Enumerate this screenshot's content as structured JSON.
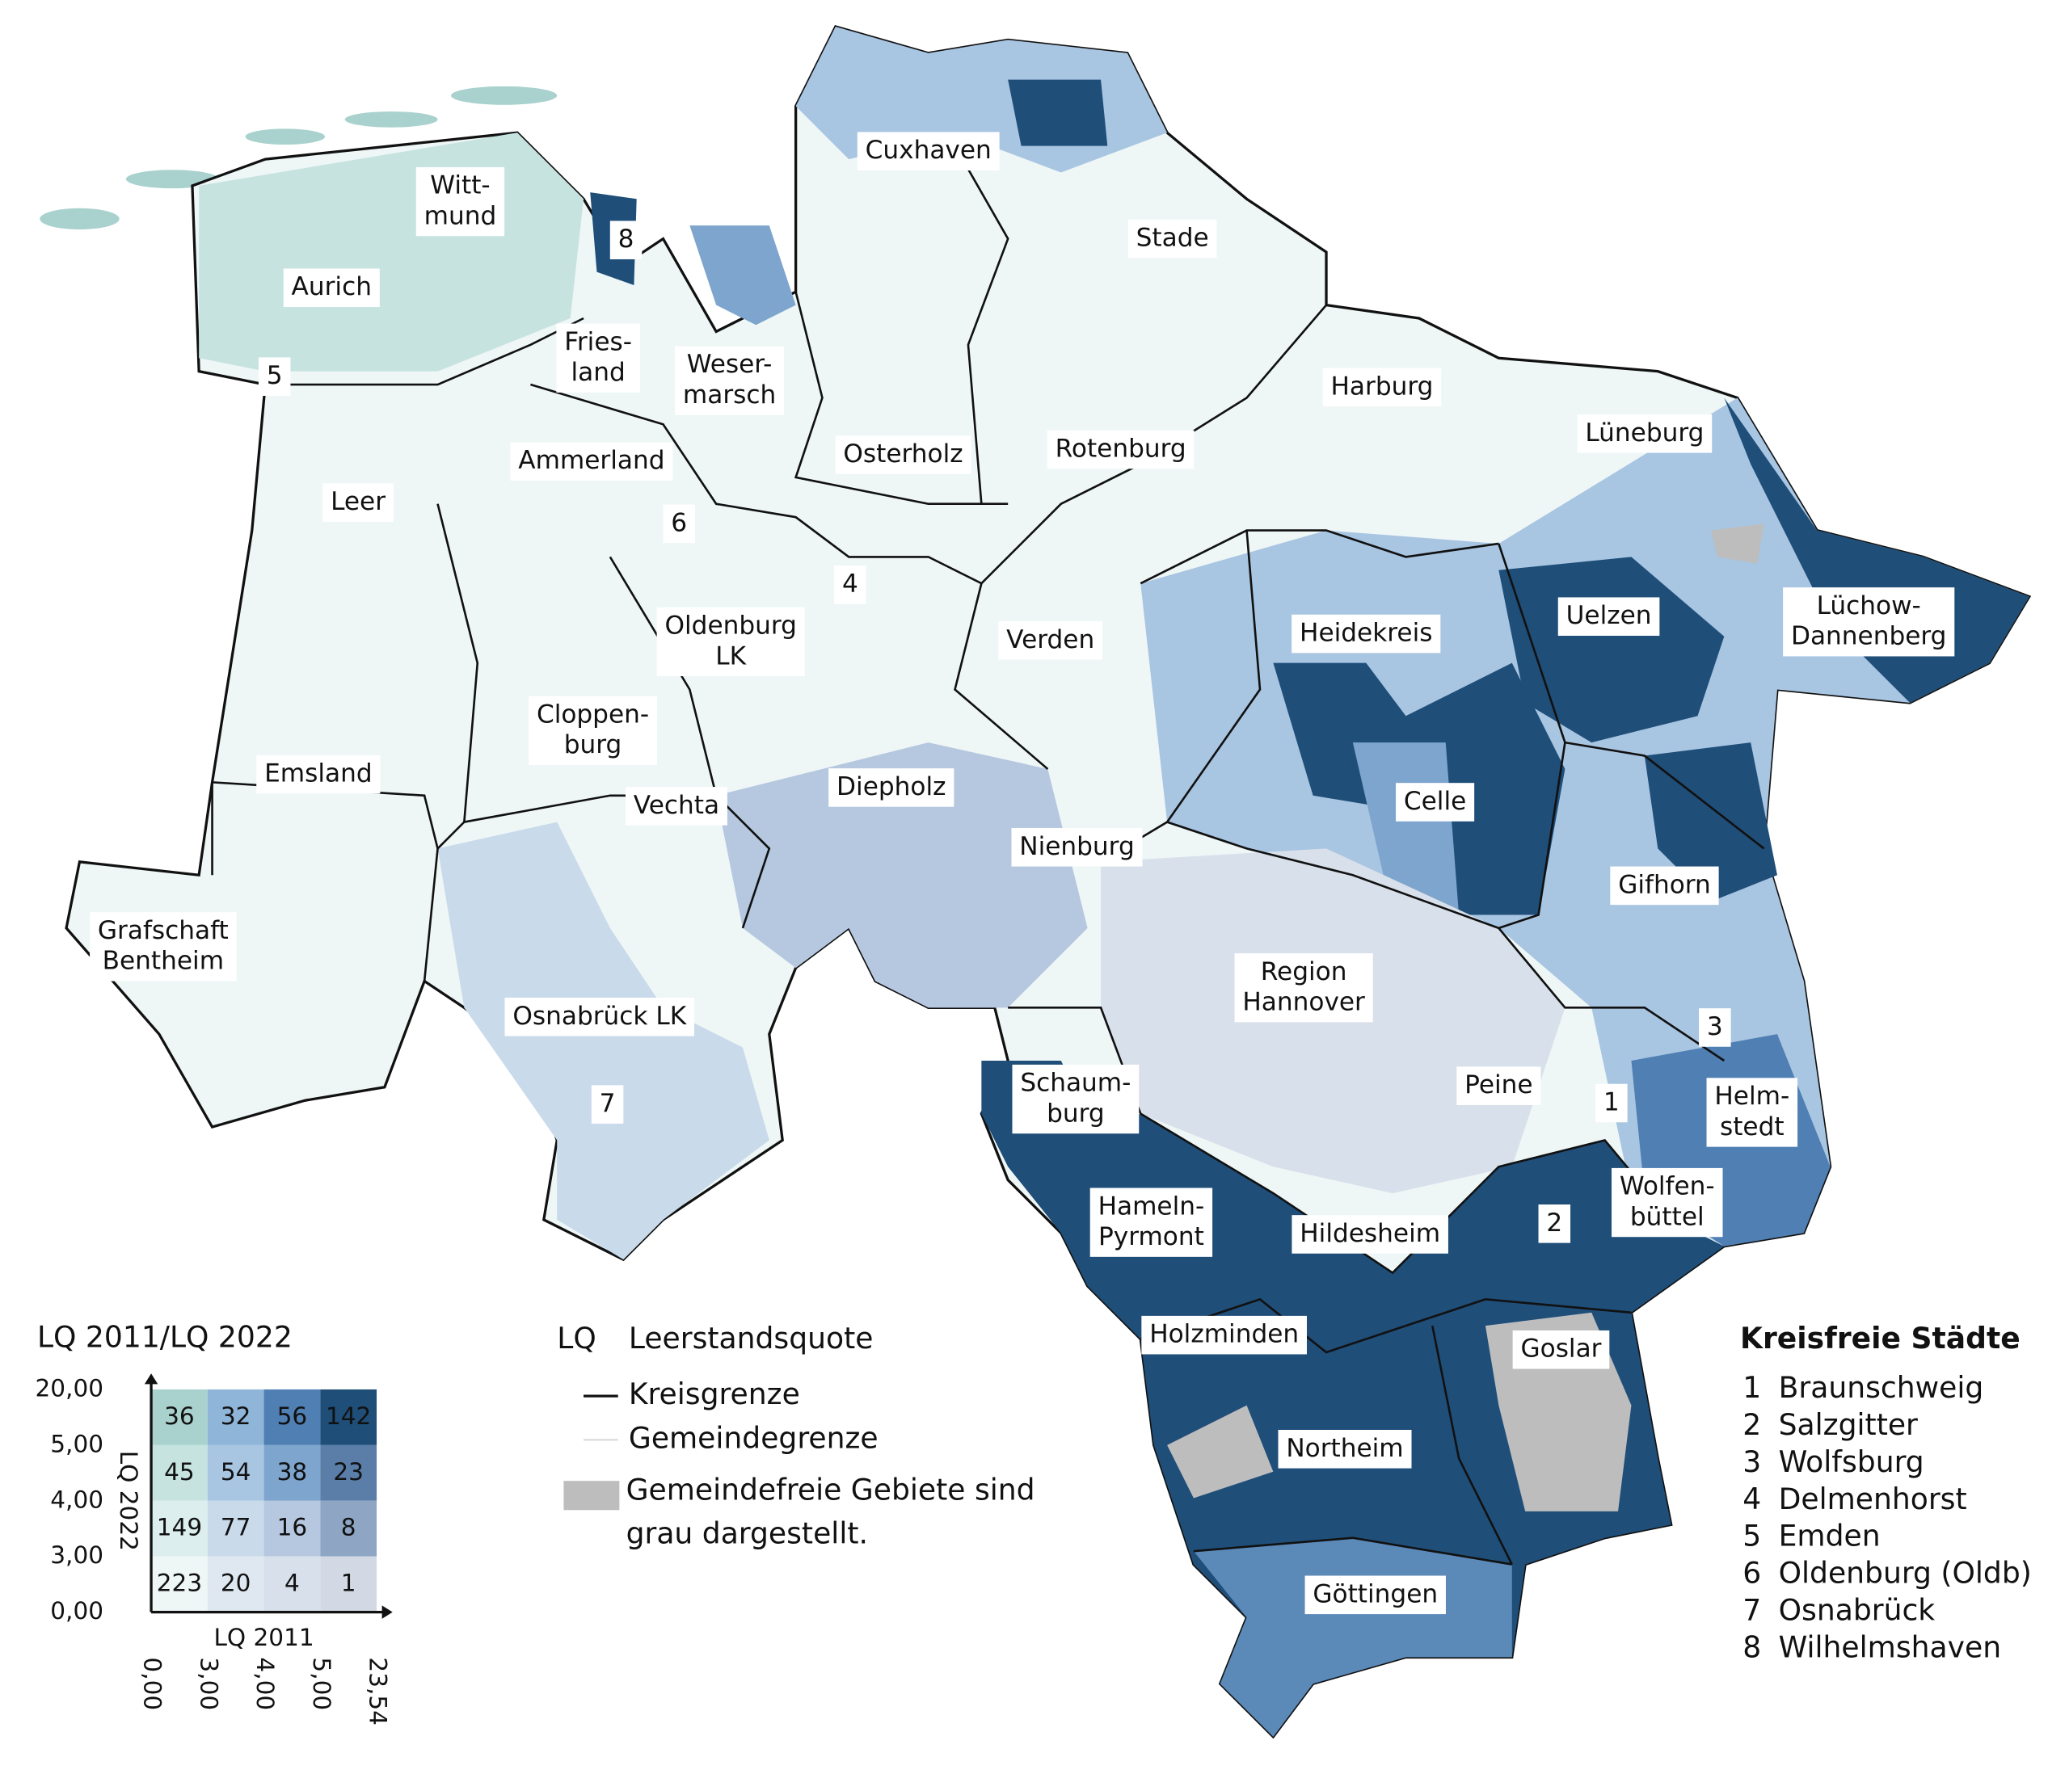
{
  "map": {
    "labels": [
      {
        "lines": [
          "Cuxhaven"
        ]
      },
      {
        "lines": [
          "Stade"
        ]
      },
      {
        "lines": [
          "Witt-",
          "mund"
        ]
      },
      {
        "lines": [
          "Aurich"
        ]
      },
      {
        "lines": [
          "8"
        ]
      },
      {
        "lines": [
          "Fries-",
          "land"
        ]
      },
      {
        "lines": [
          "Weser-",
          "marsch"
        ]
      },
      {
        "lines": [
          "5"
        ]
      },
      {
        "lines": [
          "Harburg"
        ]
      },
      {
        "lines": [
          "Lüneburg"
        ]
      },
      {
        "lines": [
          "Ammerland"
        ]
      },
      {
        "lines": [
          "Osterholz"
        ]
      },
      {
        "lines": [
          "Rotenburg"
        ]
      },
      {
        "lines": [
          "Leer"
        ]
      },
      {
        "lines": [
          "6"
        ]
      },
      {
        "lines": [
          "4"
        ]
      },
      {
        "lines": [
          "Uelzen"
        ]
      },
      {
        "lines": [
          "Lüchow-",
          "Dannenberg"
        ]
      },
      {
        "lines": [
          "Heidekreis"
        ]
      },
      {
        "lines": [
          "Oldenburg",
          "LK"
        ]
      },
      {
        "lines": [
          "Verden"
        ]
      },
      {
        "lines": [
          "Cloppen-",
          "burg"
        ]
      },
      {
        "lines": [
          "Emsland"
        ]
      },
      {
        "lines": [
          "Celle"
        ]
      },
      {
        "lines": [
          "Diepholz"
        ]
      },
      {
        "lines": [
          "Vechta"
        ]
      },
      {
        "lines": [
          "Nienburg"
        ]
      },
      {
        "lines": [
          "Gifhorn"
        ]
      },
      {
        "lines": [
          "Grafschaft",
          "Bentheim"
        ]
      },
      {
        "lines": [
          "Region",
          "Hannover"
        ]
      },
      {
        "lines": [
          "Osnabrück LK"
        ]
      },
      {
        "lines": [
          "3"
        ]
      },
      {
        "lines": [
          "Schaum-",
          "burg"
        ]
      },
      {
        "lines": [
          "Peine"
        ]
      },
      {
        "lines": [
          "1"
        ]
      },
      {
        "lines": [
          "Helm-",
          "stedt"
        ]
      },
      {
        "lines": [
          "7"
        ]
      },
      {
        "lines": [
          "Hameln-",
          "Pyrmont"
        ]
      },
      {
        "lines": [
          "Hildesheim"
        ]
      },
      {
        "lines": [
          "2"
        ]
      },
      {
        "lines": [
          "Wolfen-",
          "büttel"
        ]
      },
      {
        "lines": [
          "Holzminden"
        ]
      },
      {
        "lines": [
          "Goslar"
        ]
      },
      {
        "lines": [
          "Northeim"
        ]
      },
      {
        "lines": [
          "Göttingen"
        ]
      }
    ]
  },
  "legend": {
    "title": "LQ 2011/LQ 2022",
    "y_axis_label": "LQ 2022",
    "x_axis_label": "LQ 2011",
    "y_ticks": [
      "20,00",
      "5,00",
      "4,00",
      "3,00",
      "0,00"
    ],
    "x_ticks": [
      "0,00",
      "3,00",
      "4,00",
      "5,00",
      "23,54"
    ],
    "matrix": [
      [
        36,
        32,
        56,
        142
      ],
      [
        45,
        54,
        38,
        23
      ],
      [
        149,
        77,
        16,
        8
      ],
      [
        223,
        20,
        4,
        1
      ]
    ],
    "colors": [
      [
        "#a9d2ce",
        "#8fb6d8",
        "#4f7fb3",
        "#1f4e79"
      ],
      [
        "#c6e3e0",
        "#a8c5e2",
        "#7ea5cd",
        "#5a7ea8"
      ],
      [
        "#dcefee",
        "#c9daeb",
        "#b6c8e0",
        "#8ea6c4"
      ],
      [
        "#eef6f6",
        "#dfe8f1",
        "#d8e0eb",
        "#d2d9e4"
      ]
    ]
  },
  "key": {
    "abbr": "LQ",
    "abbr_text": "Leerstandsquote",
    "items": [
      "Kreisgrenze",
      "Gemeindegrenze"
    ],
    "note": [
      "Gemeindefreie Gebiete sind",
      "grau dargestellt."
    ]
  },
  "cities": {
    "title": "Kreisfreie Städte",
    "items": [
      {
        "num": "1",
        "name": "Braunschweig"
      },
      {
        "num": "2",
        "name": "Salzgitter"
      },
      {
        "num": "3",
        "name": "Wolfsburg"
      },
      {
        "num": "4",
        "name": "Delmenhorst"
      },
      {
        "num": "5",
        "name": "Emden"
      },
      {
        "num": "6",
        "name": "Oldenburg (Oldb)"
      },
      {
        "num": "7",
        "name": "Osnabrück"
      },
      {
        "num": "8",
        "name": "Wilhelmshaven"
      }
    ]
  }
}
